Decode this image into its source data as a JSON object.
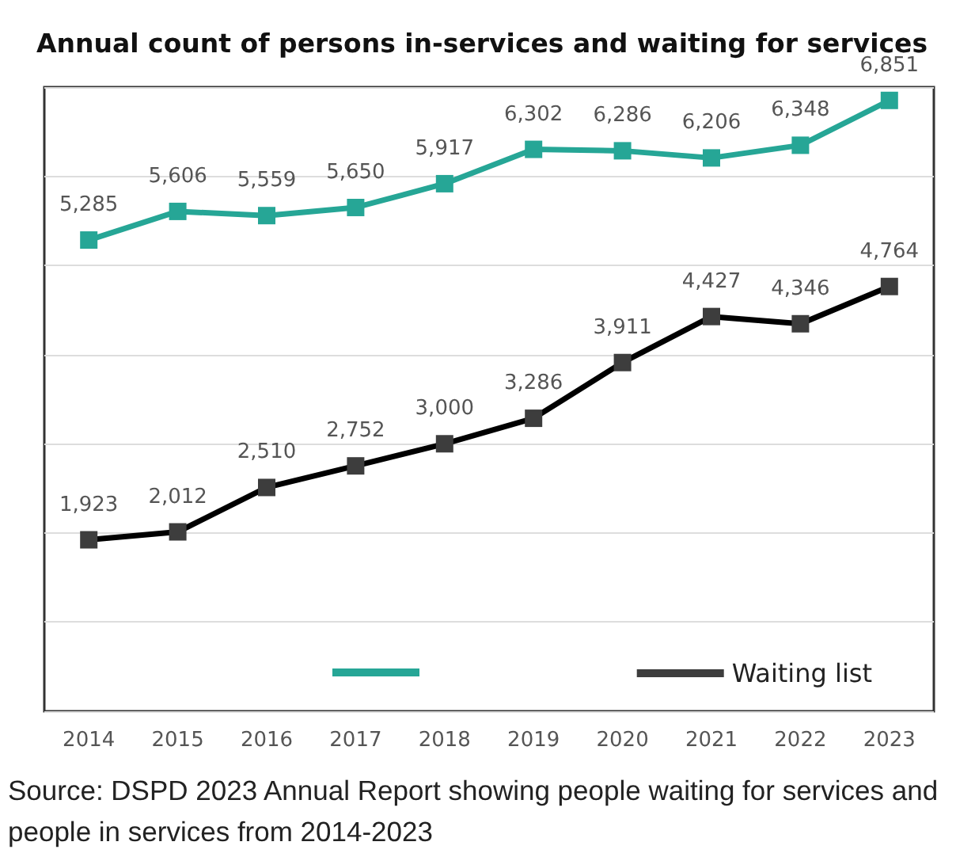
{
  "chart_data": {
    "type": "line",
    "title": "Annual count of persons in-services and waiting for services",
    "categories": [
      "2014",
      "2015",
      "2016",
      "2017",
      "2018",
      "2019",
      "2020",
      "2021",
      "2022",
      "2023"
    ],
    "series": [
      {
        "color": "#26a696",
        "values": [
          5285,
          5606,
          5559,
          5650,
          5917,
          6302,
          6286,
          6206,
          6348,
          6851
        ],
        "value_labels": [
          "5,285",
          "5,606",
          "5,559",
          "5,650",
          "5,917",
          "6,302",
          "6,286",
          "6,206",
          "6,348",
          "6,851"
        ]
      },
      {
        "name": "Waiting list",
        "color": "#000000",
        "values": [
          1923,
          2012,
          2510,
          2752,
          3000,
          3286,
          3911,
          4427,
          4346,
          4764
        ],
        "value_labels": [
          "1,923",
          "2,012",
          "2,510",
          "2,752",
          "3,000",
          "3,286",
          "3,911",
          "4,427",
          "4,346",
          "4,764"
        ]
      }
    ],
    "tick_labels": "x",
    "grid": "y",
    "legend": "bottom",
    "marker": "square",
    "line_style": "solid",
    "annotations": [
      "Source: DSPD 2023 Annual Report showing people waiting for services and people in services from 2014-2023"
    ]
  }
}
